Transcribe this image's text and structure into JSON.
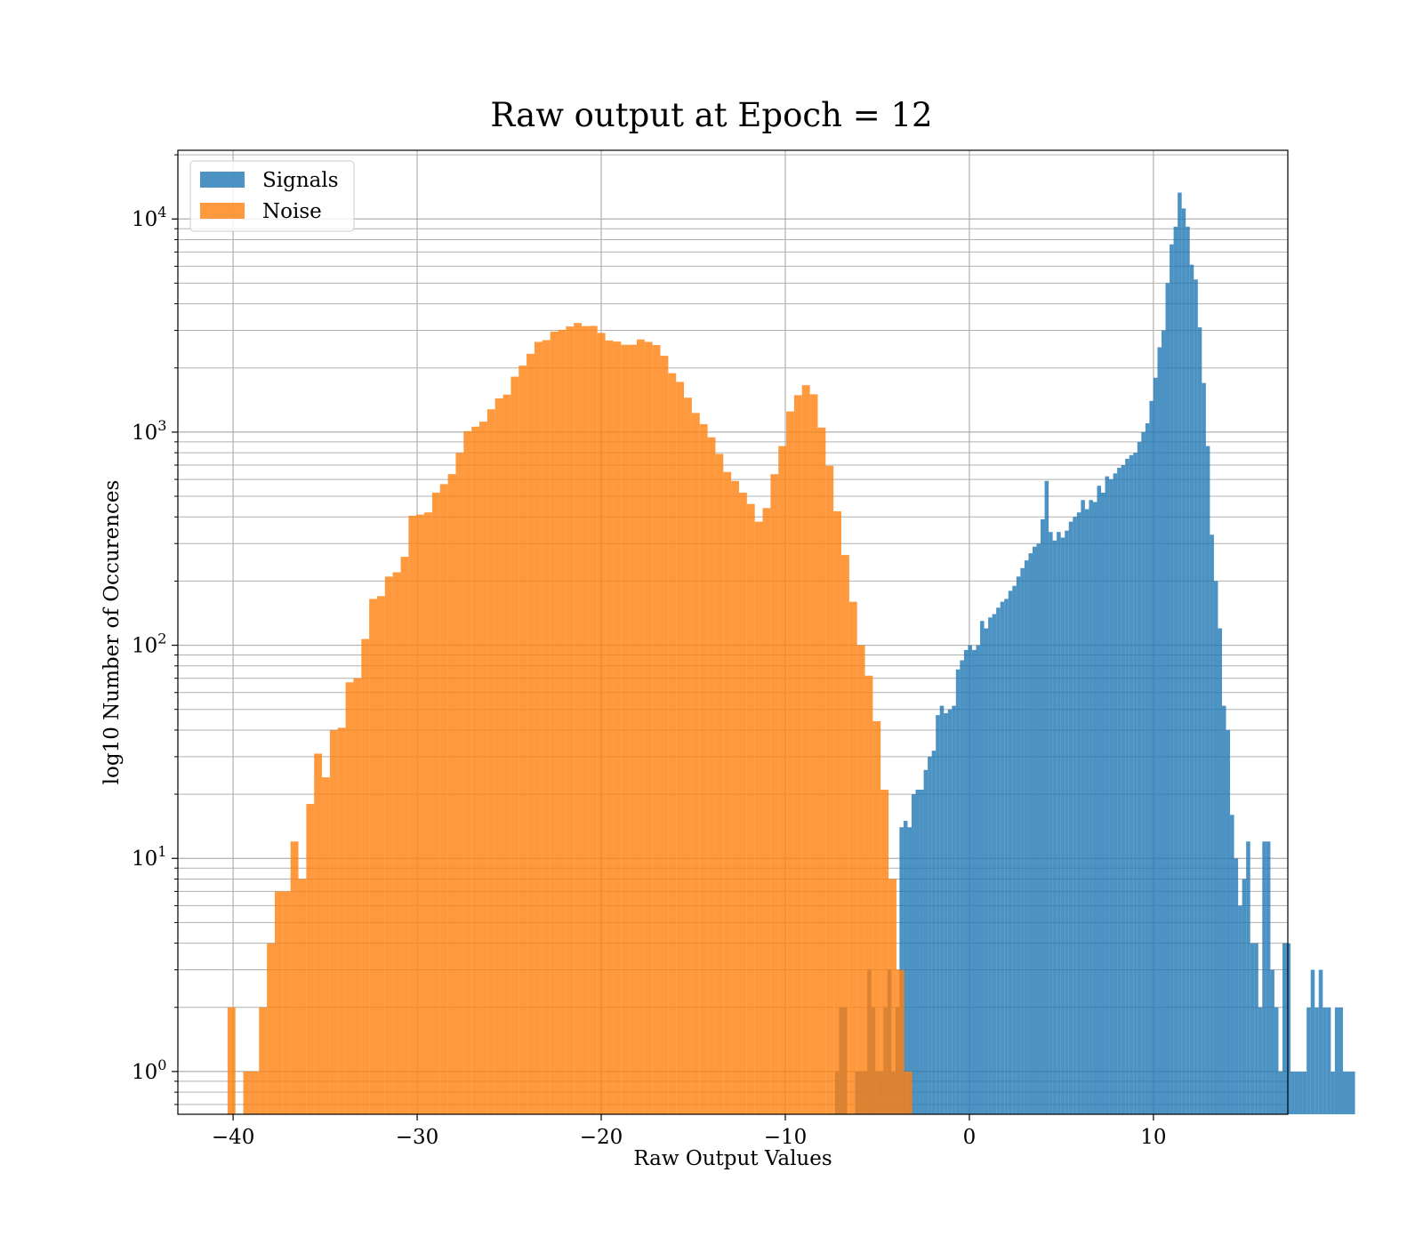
{
  "chart_data": {
    "type": "bar",
    "title": "Raw output at Epoch = 12",
    "xlabel": "Raw Output Values",
    "ylabel": "log10 Number of Occurences",
    "xlim": [
      -43,
      17.3
    ],
    "ylim": [
      0.63,
      21000
    ],
    "yscale": "log",
    "grid": true,
    "legend_position": "upper-left",
    "x_ticks": [
      -40,
      -30,
      -20,
      -10,
      0,
      10
    ],
    "x_tick_labels": [
      "−40",
      "−30",
      "−20",
      "−10",
      "0",
      "10"
    ],
    "y_ticks": [
      {
        "value": 1,
        "base": "10",
        "exp": "0"
      },
      {
        "value": 10,
        "base": "10",
        "exp": "1"
      },
      {
        "value": 100,
        "base": "10",
        "exp": "2"
      },
      {
        "value": 1000,
        "base": "10",
        "exp": "3"
      },
      {
        "value": 10000,
        "base": "10",
        "exp": "4"
      }
    ],
    "series": [
      {
        "name": "Signals",
        "color": "#1f77b4",
        "opacity": 0.8,
        "bin_start": -7.3,
        "bin_width": 0.219,
        "values": [
          1,
          2,
          2,
          0,
          0,
          1,
          1,
          1,
          3,
          2,
          1,
          1,
          2,
          3,
          1,
          2,
          14,
          15,
          14,
          20,
          21,
          21,
          26,
          30,
          32,
          47,
          52,
          48,
          50,
          52,
          77,
          85,
          95,
          100,
          95,
          100,
          130,
          120,
          135,
          140,
          150,
          160,
          165,
          180,
          190,
          210,
          230,
          250,
          270,
          290,
          300,
          390,
          590,
          340,
          310,
          340,
          320,
          345,
          380,
          400,
          420,
          480,
          435,
          480,
          470,
          560,
          520,
          620,
          600,
          640,
          680,
          700,
          750,
          780,
          800,
          900,
          1000,
          1100,
          1400,
          1800,
          2500,
          3000,
          5000,
          7600,
          9200,
          13300,
          11200,
          9200,
          6100,
          5200,
          3100,
          1700,
          860,
          330,
          200,
          120,
          52,
          40,
          16,
          10,
          6,
          8,
          12,
          4,
          4,
          2,
          12,
          12,
          3,
          2,
          1,
          4,
          4,
          1,
          1,
          1,
          1,
          2,
          3,
          2,
          3,
          2,
          2,
          1,
          2,
          2,
          1,
          1,
          1
        ]
      },
      {
        "name": "Noise",
        "color": "#ff7f0e",
        "opacity": 0.8,
        "bin_start": -40.3,
        "bin_width": 0.4275,
        "values": [
          2,
          0,
          1,
          1,
          2,
          4,
          7,
          7,
          12,
          8,
          18,
          31,
          24,
          40,
          41,
          67,
          70,
          107,
          165,
          170,
          210,
          220,
          260,
          405,
          410,
          420,
          520,
          570,
          635,
          800,
          1010,
          1060,
          1120,
          1280,
          1440,
          1500,
          1820,
          2050,
          2330,
          2650,
          2700,
          2960,
          3020,
          3130,
          3250,
          3140,
          3150,
          2920,
          2690,
          2660,
          2570,
          2570,
          2720,
          2650,
          2560,
          2280,
          1890,
          1720,
          1450,
          1230,
          1090,
          945,
          790,
          650,
          590,
          520,
          460,
          380,
          440,
          635,
          860,
          1250,
          1490,
          1660,
          1505,
          1050,
          695,
          425,
          265,
          160,
          100,
          72,
          44,
          21,
          8,
          3,
          1
        ]
      }
    ]
  }
}
